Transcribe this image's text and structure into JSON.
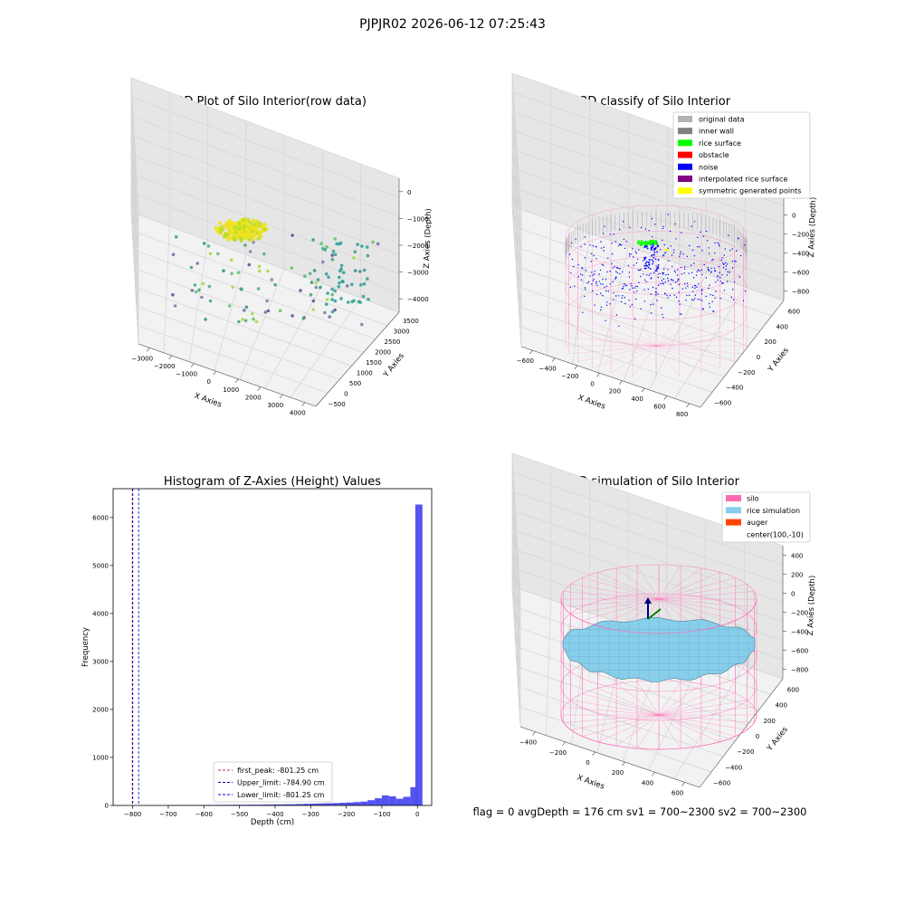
{
  "figure": {
    "suptitle": "PJPJR02 2026-06-12 07:25:43",
    "status_text": "flag = 0     avgDepth = 176 cm  sv1 = 700~2300  sv2 = 700~2300"
  },
  "colors": {
    "hist_bar": "#4b4bf0",
    "first_peak": "#d62728",
    "limits": "#0000cc",
    "silo": "#ff69b4",
    "rice": "#87ceeb",
    "auger": "#ff4500",
    "original": "#b3b3b3",
    "inner_wall": "#808080",
    "rice_surface": "#00ff00",
    "obstacle": "#ff0000",
    "noise": "#0000ff",
    "interpolated": "#800080",
    "symmetric": "#ffff00"
  },
  "chart_data": [
    {
      "type": "scatter",
      "title": "3D Plot of Silo Interior(row data)",
      "xlabel": "X Axies",
      "ylabel": "Y Axies",
      "zlabel": "Z Axies (Depth)",
      "xticks": [
        "−3000",
        "−2000",
        "−1000",
        "0",
        "1000",
        "2000",
        "3000",
        "4000"
      ],
      "yticks": [
        "−500",
        "0",
        "500",
        "1000",
        "1500",
        "2000",
        "2500",
        "3000",
        "3500"
      ],
      "zticks": [
        "−4000",
        "−3000",
        "−2000",
        "−1000",
        "0"
      ],
      "xlim": [
        -3300,
        4300
      ],
      "ylim": [
        -600,
        3600
      ],
      "zlim": [
        -4300,
        100
      ],
      "colormap": "viridis"
    },
    {
      "type": "scatter",
      "title": "3D classify of Silo Interior",
      "xlabel": "X Axies",
      "ylabel": "Y Axies",
      "zlabel": "Z Axies (Depth)",
      "xticks": [
        "−600",
        "−400",
        "−200",
        "0",
        "200",
        "400",
        "600",
        "800"
      ],
      "yticks": [
        "−600",
        "−400",
        "−200",
        "0",
        "200",
        "400",
        "600"
      ],
      "zticks": [
        "−800",
        "−600",
        "−400",
        "−200",
        "0",
        "200",
        "400"
      ],
      "xlim": [
        -650,
        850
      ],
      "ylim": [
        -650,
        650
      ],
      "zlim": [
        -900,
        450
      ],
      "legend": [
        "original data",
        "inner wall",
        "rice surface",
        "obstacle",
        "noise",
        "interpolated rice surface",
        "symmetric generated points"
      ],
      "legend_loc": "upper right"
    },
    {
      "type": "bar",
      "title": "Histogram of Z-Axies (Height) Values",
      "xlabel": "Depth (cm)",
      "ylabel": "Frequency",
      "xticks": [
        -800,
        -700,
        -600,
        -500,
        -400,
        -300,
        -200,
        -100,
        0
      ],
      "yticks": [
        0,
        1000,
        2000,
        3000,
        4000,
        5000,
        6000
      ],
      "xlim": [
        -855,
        40
      ],
      "ylim": [
        0,
        6600
      ],
      "bin_width": 20,
      "bin_starts": [
        -700,
        -680,
        -660,
        -640,
        -620,
        -600,
        -580,
        -560,
        -540,
        -520,
        -500,
        -480,
        -460,
        -440,
        -420,
        -400,
        -380,
        -360,
        -340,
        -320,
        -300,
        -280,
        -260,
        -240,
        -220,
        -200,
        -180,
        -160,
        -140,
        -120,
        -100,
        -80,
        -60,
        -40,
        -20
      ],
      "values": [
        8,
        8,
        8,
        8,
        8,
        10,
        10,
        12,
        12,
        14,
        14,
        16,
        16,
        18,
        20,
        22,
        24,
        26,
        30,
        34,
        38,
        42,
        46,
        50,
        56,
        62,
        70,
        80,
        110,
        150,
        210,
        190,
        140,
        180,
        380
      ],
      "extra_bin": {
        "start": 0,
        "end": 20,
        "value": 6270
      },
      "vlines": [
        {
          "label": "first_peak: -801.25 cm",
          "x": -801.25,
          "color_key": "first_peak"
        },
        {
          "label": "Upper_limit: -784.90 cm",
          "x": -784.9,
          "color_key": "limits"
        },
        {
          "label": "Lower_limit: -801.25 cm",
          "x": -801.25,
          "color_key": "limits"
        }
      ],
      "legend_loc": "lower center"
    },
    {
      "type": "scatter",
      "title": "3D simulation of Silo Interior",
      "xlabel": "X Axies",
      "ylabel": "Y Axies",
      "zlabel": "Z Axies (Depth)",
      "xticks": [
        "−400",
        "−200",
        "0",
        "200",
        "400",
        "600"
      ],
      "yticks": [
        "−600",
        "−400",
        "−200",
        "0",
        "200",
        "400",
        "600"
      ],
      "zticks": [
        "−800",
        "−600",
        "−400",
        "−200",
        "0",
        "200",
        "400"
      ],
      "xlim": [
        -550,
        750
      ],
      "ylim": [
        -700,
        700
      ],
      "zlim": [
        -900,
        450
      ],
      "legend": [
        "silo",
        "rice simulation",
        "auger",
        "center(100,-10)"
      ],
      "legend_loc": "upper right",
      "silo_radius": 600,
      "silo_center": [
        100,
        -10
      ],
      "rice_depth": -176
    }
  ]
}
